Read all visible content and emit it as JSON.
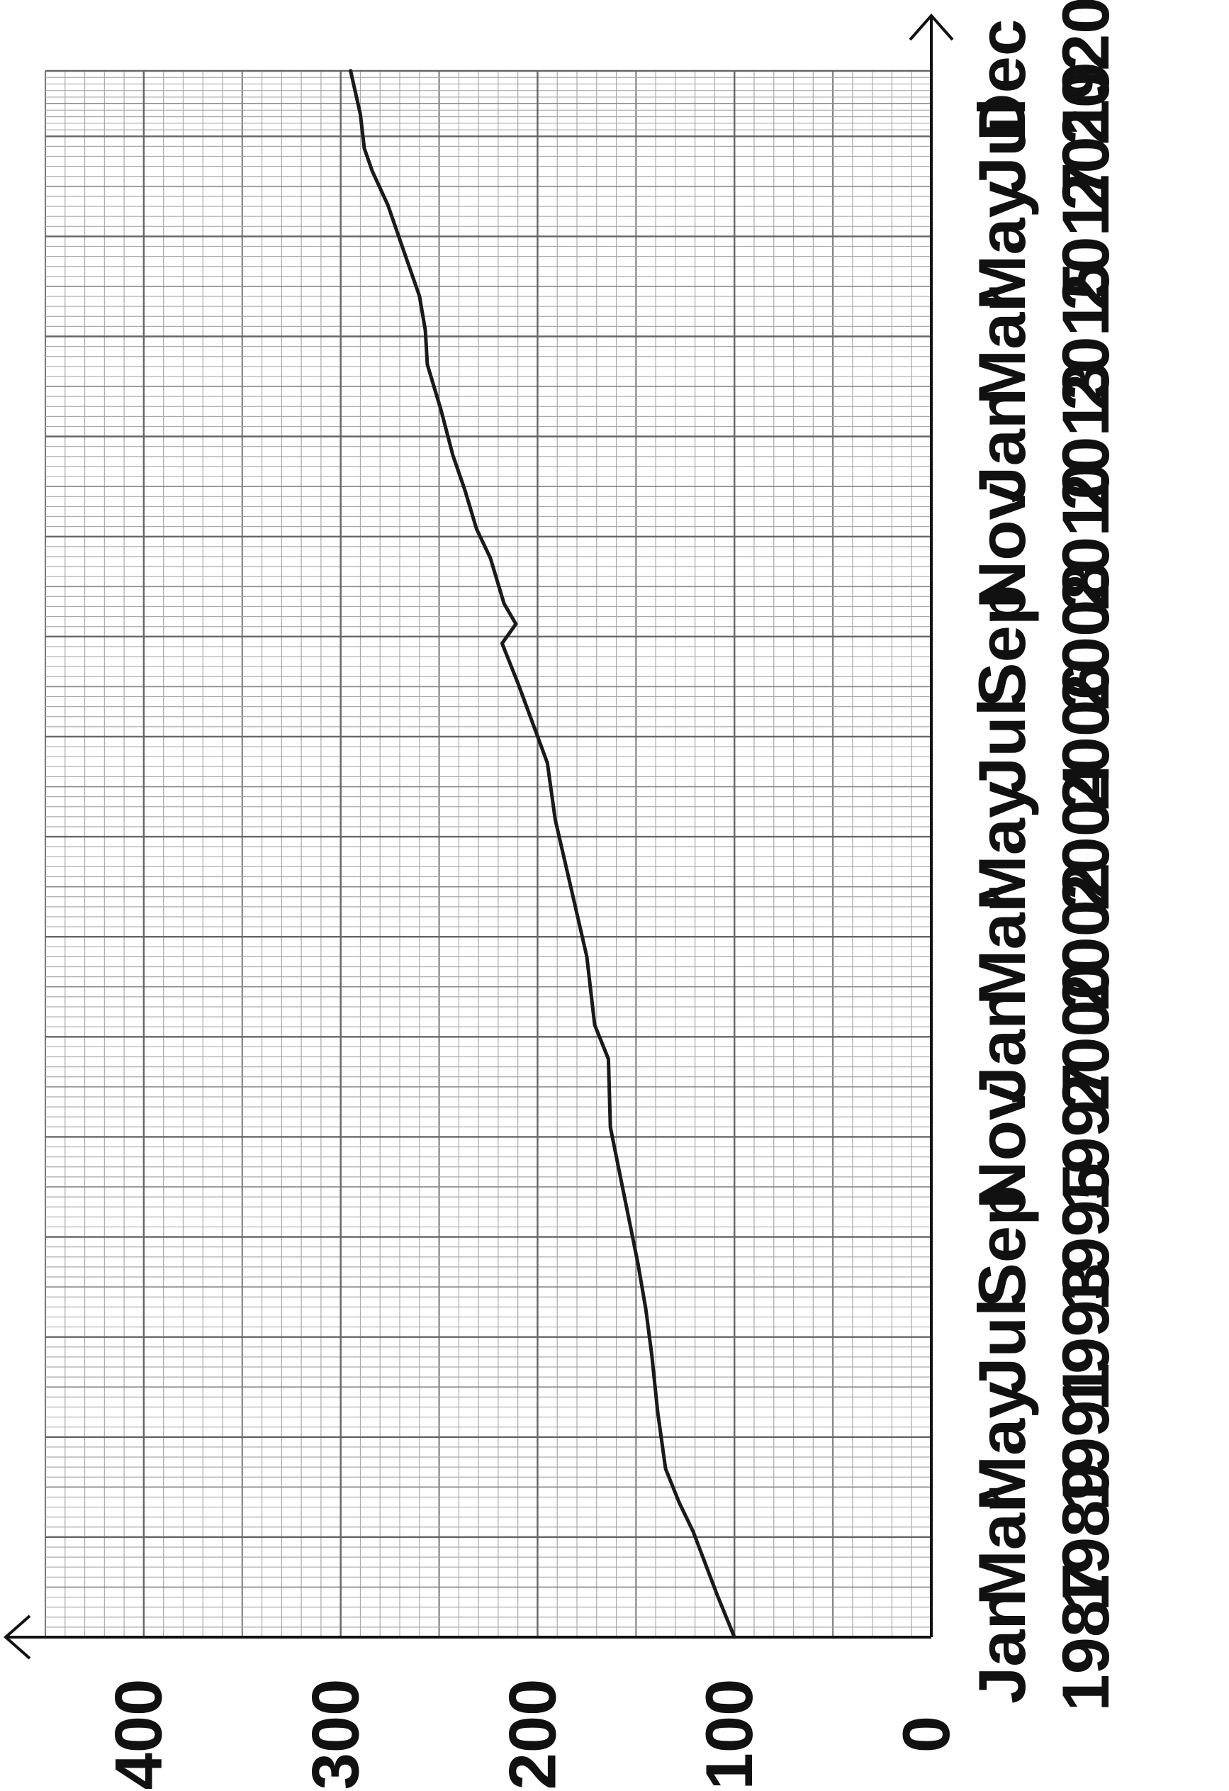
{
  "chart_data": {
    "type": "line",
    "x": [
      1987.0,
      1987.94,
      1989.29,
      1989.91,
      1990.65,
      1991.88,
      1993.11,
      1994.1,
      1995.09,
      1996.56,
      1998.04,
      1999.52,
      2000.26,
      2001.74,
      2003.22,
      2004.7,
      2005.93,
      2007.66,
      2008.52,
      2008.94,
      2009.38,
      2010.37,
      2011.0,
      2011.85,
      2012.59,
      2013.57,
      2014.56,
      2015.3,
      2016.04,
      2017.02,
      2018.01,
      2018.75,
      2019.24,
      2019.98,
      2020.92
    ],
    "values": [
      100,
      109,
      121,
      128,
      135,
      139,
      142,
      145,
      149,
      156,
      163,
      164,
      171,
      175,
      183,
      191,
      195,
      210,
      218,
      211,
      217,
      224,
      231,
      237,
      243,
      249,
      256,
      257,
      260,
      268,
      276,
      284,
      288,
      290,
      295
    ],
    "color": "#1a1a1a",
    "xlim": [
      1987.0,
      2020.917
    ],
    "xticks": [
      {
        "value": 1987.0,
        "label": "Jan 1987"
      },
      {
        "value": 1989.167,
        "label": "Mar 1989"
      },
      {
        "value": 1991.333,
        "label": "May 1991"
      },
      {
        "value": 1993.5,
        "label": "Jul 1993"
      },
      {
        "value": 1995.667,
        "label": "Sep 1995"
      },
      {
        "value": 1997.833,
        "label": "Nov 1997"
      },
      {
        "value": 2000.0,
        "label": "Jan 2000"
      },
      {
        "value": 2002.167,
        "label": "Mar 2002"
      },
      {
        "value": 2004.333,
        "label": "May 2004"
      },
      {
        "value": 2006.5,
        "label": "Jul 2006"
      },
      {
        "value": 2008.667,
        "label": "Sep 2008"
      },
      {
        "value": 2010.833,
        "label": "Nov 2010"
      },
      {
        "value": 2013.0,
        "label": "Jan 2013"
      },
      {
        "value": 2015.167,
        "label": "Mar 2015"
      },
      {
        "value": 2017.333,
        "label": "May 2017"
      },
      {
        "value": 2019.5,
        "label": "Jul 2019"
      },
      {
        "value": 2020.917,
        "label": "Dec 2020"
      }
    ],
    "ylim": [
      0,
      450
    ],
    "yticks": [
      0,
      100,
      200,
      300,
      400
    ],
    "grid": true,
    "rotated": true
  }
}
